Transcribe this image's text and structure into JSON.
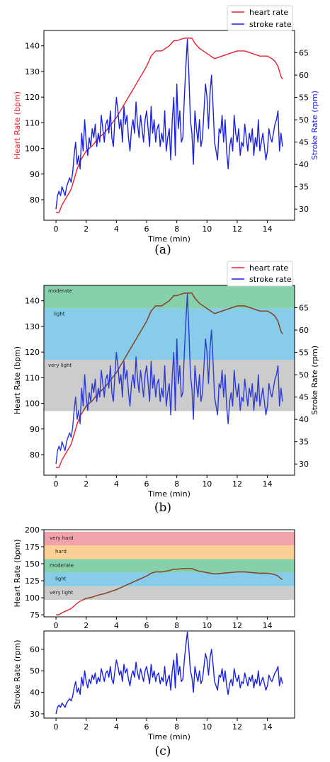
{
  "colors": {
    "heart": "#e8202a",
    "stroke": "#1a22e0",
    "overlay_line": "#7a4a2a",
    "overlay_stroke": "#4444bb"
  },
  "zone_colors": {
    "very light": "#cccccc",
    "light": "#87cdea",
    "moderate": "#86d1ac",
    "hard": "#fbcf96",
    "very hard": "#f2a3a9"
  },
  "captions": [
    "(a)",
    "(b)",
    "(c)"
  ],
  "legend": {
    "heart": "heart rate",
    "stroke": "stroke rate"
  },
  "chart_data": [
    {
      "id": "a",
      "type": "line",
      "dual_axis": true,
      "xlabel": "Time (min)",
      "ylabel_left": "Heart Rate (bpm)",
      "ylabel_right": "Stroke Rate (rpm)",
      "xlim": [
        -0.8,
        15.8
      ],
      "ylim_left": [
        72,
        146
      ],
      "ylim_right": [
        27.5,
        70
      ],
      "xticks": [
        0,
        2,
        4,
        6,
        8,
        10,
        12,
        14
      ],
      "yticks_left": [
        80,
        90,
        100,
        110,
        120,
        130,
        140
      ],
      "yticks_right": [
        30,
        35,
        40,
        45,
        50,
        55,
        60,
        65
      ],
      "left_tick_color": "red",
      "right_tick_color": "blue",
      "legend_position": "top-right outside",
      "zones": []
    },
    {
      "id": "b",
      "type": "line",
      "dual_axis": true,
      "xlabel": "Time (min)",
      "ylabel_left": "Heart Rate (bpm)",
      "ylabel_right": "Stroke Rate (rpm)",
      "xlim": [
        -0.8,
        15.8
      ],
      "ylim_left": [
        72,
        146
      ],
      "ylim_right": [
        27.5,
        70
      ],
      "xticks": [
        0,
        2,
        4,
        6,
        8,
        10,
        12,
        14
      ],
      "yticks_left": [
        80,
        90,
        100,
        110,
        120,
        130,
        140
      ],
      "yticks_right": [
        30,
        35,
        40,
        45,
        50,
        55,
        60,
        65
      ],
      "left_tick_color": "black",
      "right_tick_color": "black",
      "legend_position": "top-right outside",
      "zones": [
        {
          "label": "very light",
          "from": 97,
          "to": 117
        },
        {
          "label": "light",
          "from": 117,
          "to": 137
        },
        {
          "label": "moderate",
          "from": 137,
          "to": 146
        }
      ]
    },
    {
      "id": "c1",
      "type": "line",
      "dual_axis": false,
      "xlabel": "",
      "ylabel_left": "Heart Rate (bpm)",
      "xlim": [
        -0.8,
        15.8
      ],
      "ylim_left": [
        72,
        200
      ],
      "xticks": [
        0,
        2,
        4,
        6,
        8,
        10,
        12,
        14
      ],
      "yticks_left": [
        75,
        100,
        125,
        150,
        175,
        200
      ],
      "zones": [
        {
          "label": "very light",
          "from": 97,
          "to": 117
        },
        {
          "label": "light",
          "from": 117,
          "to": 137
        },
        {
          "label": "moderate",
          "from": 137,
          "to": 157
        },
        {
          "label": "hard",
          "from": 157,
          "to": 177
        },
        {
          "label": "very hard",
          "from": 177,
          "to": 197
        }
      ]
    },
    {
      "id": "c2",
      "type": "line",
      "dual_axis": false,
      "xlabel": "Time (min)",
      "ylabel_left": "Stroke Rate (rpm)",
      "xlim": [
        -0.8,
        15.8
      ],
      "ylim_left": [
        28,
        68.5
      ],
      "xticks": [
        0,
        2,
        4,
        6,
        8,
        10,
        12,
        14
      ],
      "yticks_left": [
        30,
        40,
        50,
        60
      ],
      "zones": []
    }
  ],
  "series_data": {
    "heart_rate": {
      "name": "heart rate",
      "x": [
        0,
        0.2,
        0.4,
        0.6,
        0.8,
        1.0,
        1.2,
        1.4,
        1.6,
        1.8,
        2.0,
        2.4,
        2.8,
        3.2,
        3.6,
        4.0,
        4.4,
        4.8,
        5.2,
        5.6,
        6.0,
        6.3,
        6.6,
        7.0,
        7.5,
        7.8,
        8.0,
        8.5,
        9.0,
        9.2,
        9.5,
        10.0,
        10.5,
        11.0,
        11.5,
        12.0,
        12.5,
        13.0,
        13.5,
        14.0,
        14.3,
        14.5,
        14.7,
        14.9,
        15.0
      ],
      "y": [
        75,
        75,
        78,
        80,
        82,
        84,
        88,
        92,
        95,
        97,
        99,
        101,
        104,
        106,
        109,
        112,
        116,
        120,
        124,
        128,
        132,
        136,
        138,
        138,
        140,
        142,
        142,
        143,
        143,
        141,
        139,
        137,
        135,
        136,
        137,
        138,
        138,
        137,
        136,
        136,
        135,
        134,
        132,
        128,
        127
      ]
    },
    "stroke_rate": {
      "name": "stroke rate",
      "x": [
        0,
        0.1,
        0.2,
        0.3,
        0.4,
        0.5,
        0.6,
        0.7,
        0.8,
        0.9,
        1.0,
        1.1,
        1.2,
        1.3,
        1.4,
        1.5,
        1.6,
        1.7,
        1.8,
        1.9,
        2.0,
        2.1,
        2.2,
        2.3,
        2.4,
        2.5,
        2.6,
        2.7,
        2.8,
        2.9,
        3.0,
        3.1,
        3.2,
        3.3,
        3.4,
        3.5,
        3.6,
        3.7,
        3.8,
        3.9,
        4.0,
        4.1,
        4.2,
        4.3,
        4.4,
        4.5,
        4.6,
        4.7,
        4.8,
        4.9,
        5.0,
        5.1,
        5.2,
        5.3,
        5.4,
        5.5,
        5.6,
        5.7,
        5.8,
        5.9,
        6.0,
        6.1,
        6.2,
        6.3,
        6.4,
        6.5,
        6.6,
        6.7,
        6.8,
        6.9,
        7.0,
        7.1,
        7.2,
        7.3,
        7.4,
        7.5,
        7.6,
        7.7,
        7.8,
        7.9,
        8.0,
        8.1,
        8.2,
        8.3,
        8.4,
        8.5,
        8.6,
        8.7,
        8.8,
        8.9,
        9.0,
        9.1,
        9.2,
        9.3,
        9.4,
        9.5,
        9.6,
        9.7,
        9.8,
        9.9,
        10.0,
        10.1,
        10.2,
        10.3,
        10.4,
        10.5,
        10.6,
        10.7,
        10.8,
        10.9,
        11.0,
        11.1,
        11.2,
        11.3,
        11.4,
        11.5,
        11.6,
        11.7,
        11.8,
        11.9,
        12.0,
        12.1,
        12.2,
        12.3,
        12.4,
        12.5,
        12.6,
        12.7,
        12.8,
        12.9,
        13.0,
        13.1,
        13.2,
        13.3,
        13.4,
        13.5,
        13.6,
        13.7,
        13.8,
        13.9,
        14.0,
        14.1,
        14.2,
        14.3,
        14.4,
        14.5,
        14.6,
        14.7,
        14.8,
        14.9,
        15.0
      ],
      "y": [
        30,
        33,
        34,
        33,
        35,
        34,
        33,
        35,
        36,
        37,
        36,
        38,
        42,
        45,
        40,
        42,
        39,
        47,
        43,
        50,
        45,
        42,
        46,
        44,
        48,
        46,
        49,
        44,
        47,
        45,
        51,
        48,
        45,
        49,
        50,
        47,
        52,
        46,
        44,
        50,
        55,
        52,
        48,
        50,
        45,
        53,
        49,
        51,
        46,
        43,
        48,
        50,
        47,
        54,
        49,
        46,
        51,
        48,
        45,
        50,
        52,
        48,
        44,
        53,
        47,
        50,
        45,
        48,
        49,
        44,
        47,
        45,
        52,
        43,
        46,
        48,
        41,
        50,
        55,
        42,
        58,
        48,
        52,
        45,
        46,
        55,
        62,
        68,
        60,
        50,
        47,
        40,
        52,
        48,
        45,
        50,
        44,
        46,
        52,
        58,
        55,
        48,
        56,
        60,
        53,
        45,
        43,
        41,
        48,
        47,
        51,
        45,
        50,
        43,
        39,
        44,
        46,
        43,
        51,
        47,
        45,
        48,
        42,
        45,
        44,
        49,
        46,
        43,
        47,
        45,
        48,
        42,
        46,
        44,
        50,
        43,
        45,
        47,
        44,
        41,
        43,
        48,
        46,
        45,
        47,
        49,
        50,
        52,
        43,
        47,
        44
      ]
    }
  }
}
